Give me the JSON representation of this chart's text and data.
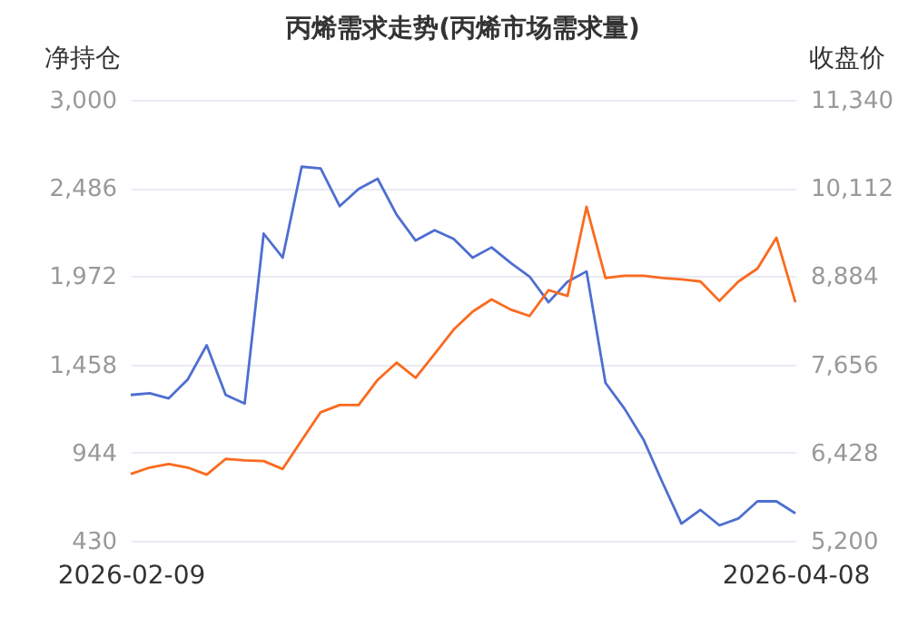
{
  "chart_data": {
    "type": "line",
    "title": "丙烯需求走势(丙烯市场需求量)",
    "ylabel": "净持仓",
    "y2label": "收盘价",
    "categories": [
      "2026-02-09",
      null,
      null,
      null,
      null,
      null,
      null,
      null,
      null,
      null,
      null,
      null,
      null,
      null,
      null,
      null,
      null,
      null,
      null,
      null,
      null,
      null,
      null,
      null,
      null,
      null,
      null,
      null,
      null,
      null,
      null,
      null,
      null,
      null,
      null,
      "2026-04-08"
    ],
    "series": [
      {
        "color": "#4e6fd0",
        "values": [
          1280,
          1290,
          1260,
          1370,
          1570,
          1280,
          1230,
          2220,
          2080,
          2610,
          2600,
          2380,
          2480,
          2540,
          2330,
          2180,
          2240,
          2190,
          2080,
          2140,
          2050,
          1970,
          1820,
          1940,
          2000,
          1350,
          1200,
          1020,
          770,
          530,
          610,
          520,
          560,
          660,
          660,
          590
        ]
      },
      {
        "color": "#fa6a1e",
        "axis": "y2",
        "values": [
          6130,
          6220,
          6270,
          6220,
          6120,
          6340,
          6320,
          6310,
          6200,
          6600,
          6990,
          7090,
          7090,
          7440,
          7680,
          7470,
          7800,
          8140,
          8390,
          8560,
          8420,
          8330,
          8690,
          8610,
          9850,
          8860,
          8890,
          8890,
          8860,
          8840,
          8810,
          8540,
          8810,
          8990,
          9420,
          8520
        ]
      }
    ],
    "ylim": [
      430,
      3000
    ],
    "yticks": [
      430,
      944,
      {
        "value": 1458,
        "label": "1,458"
      },
      {
        "value": 1972,
        "label": "1,972"
      },
      {
        "value": 2486,
        "label": "2,486"
      },
      {
        "value": 3000,
        "label": "3,000"
      }
    ],
    "y2lim": [
      5200,
      11340
    ],
    "y2ticks": [
      {
        "value": 5200,
        "label": "5,200"
      },
      {
        "value": 6428,
        "label": "6,428"
      },
      {
        "value": 7656,
        "label": "7,656"
      },
      {
        "value": 8884,
        "label": "8,884"
      },
      {
        "value": 10112,
        "label": "10,112"
      },
      {
        "value": 11340,
        "label": "11,340"
      }
    ],
    "grid": "y",
    "marker": "none",
    "line_style": "solid"
  }
}
